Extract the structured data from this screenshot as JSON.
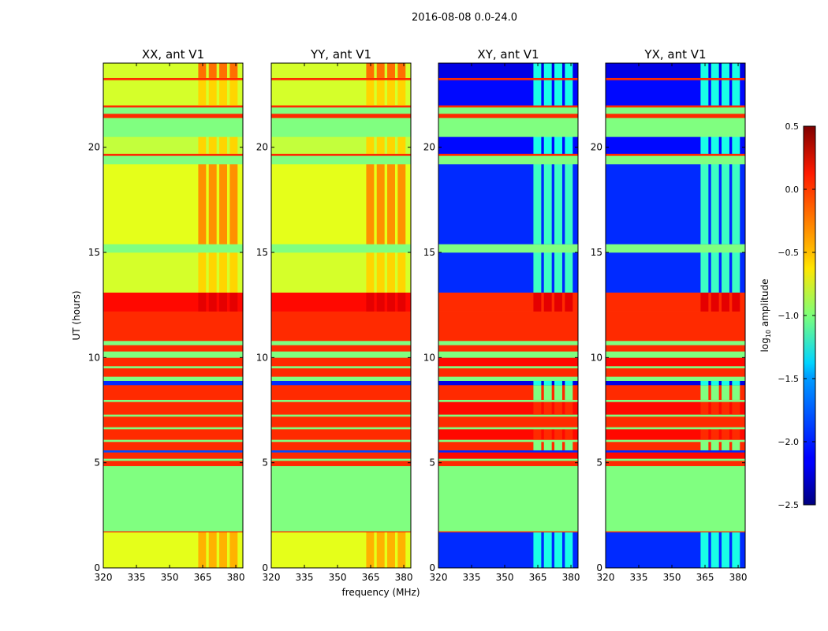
{
  "chart_data": {
    "type": "heatmap",
    "title": "2016-08-08 0.0-24.0",
    "xlabel": "frequency (MHz)",
    "ylabel": "UT (hours)",
    "xlim": [
      320,
      383.2
    ],
    "ylim": [
      0,
      24
    ],
    "x_ticks": [
      320,
      335,
      350,
      365,
      380
    ],
    "y_ticks": [
      0,
      5,
      10,
      15,
      20
    ],
    "high_band_mhz": [
      363,
      382
    ],
    "panels": [
      {
        "title": "XX, ant V1",
        "kind": "parallel"
      },
      {
        "title": "YY, ant V1",
        "kind": "parallel"
      },
      {
        "title": "XY, ant V1",
        "kind": "cross"
      },
      {
        "title": "YX, ant V1",
        "kind": "cross"
      }
    ],
    "band_columns": [
      "t0_hours",
      "t1_hours",
      "parallel_log_amp",
      "cross_log_amp",
      "parallel_log_amp_high_band",
      "cross_log_amp_high_band"
    ],
    "bands": [
      [
        0,
        1.7,
        -0.7,
        -2.0,
        -0.4,
        -1.3
      ],
      [
        1.7,
        1.75,
        0,
        0,
        0,
        0
      ],
      [
        1.75,
        4.85,
        -1,
        -1,
        -1,
        -1
      ],
      [
        4.85,
        5.1,
        0,
        0,
        0,
        0
      ],
      [
        5.1,
        5.2,
        -1,
        -1,
        -1,
        -1
      ],
      [
        5.2,
        5.5,
        0,
        0.1,
        0,
        0.1
      ],
      [
        5.5,
        5.6,
        -1.9,
        -2,
        -1.9,
        -2
      ],
      [
        5.6,
        6.0,
        0,
        0,
        0,
        -1
      ],
      [
        6.0,
        6.1,
        -1,
        -1,
        -1,
        -1
      ],
      [
        6.1,
        6.6,
        0,
        0.1,
        0,
        0
      ],
      [
        6.6,
        6.7,
        -1,
        -1,
        -1,
        -1
      ],
      [
        6.7,
        7.2,
        0,
        0,
        0,
        0
      ],
      [
        7.2,
        7.3,
        -1,
        -1,
        -1,
        -1
      ],
      [
        7.3,
        7.9,
        0,
        0.1,
        0,
        0
      ],
      [
        7.9,
        8.0,
        -1,
        -1,
        -1,
        -1
      ],
      [
        8.0,
        8.7,
        0,
        0,
        0,
        -1
      ],
      [
        8.7,
        8.9,
        -2,
        -2.2,
        -2,
        -1.3
      ],
      [
        8.9,
        9.1,
        -1,
        -1,
        -1,
        -1
      ],
      [
        9.1,
        9.5,
        0,
        0,
        0,
        0
      ],
      [
        9.5,
        9.6,
        -1,
        -1,
        -1,
        -1
      ],
      [
        9.6,
        10.0,
        0,
        0.1,
        0,
        0.1
      ],
      [
        10.0,
        10.3,
        -1,
        -1,
        -1,
        -1
      ],
      [
        10.3,
        10.6,
        0,
        0,
        0,
        0
      ],
      [
        10.6,
        10.8,
        -1,
        -1,
        -1,
        -1
      ],
      [
        10.8,
        12.2,
        0,
        0,
        0,
        0
      ],
      [
        12.2,
        13.1,
        0.1,
        0,
        0.2,
        0.2
      ],
      [
        13.1,
        15.0,
        -0.75,
        -2.0,
        -0.5,
        -1.2
      ],
      [
        15.0,
        15.4,
        -1,
        -1,
        -1,
        -1
      ],
      [
        15.4,
        19.2,
        -0.7,
        -2.0,
        -0.3,
        -1.2
      ],
      [
        19.2,
        19.6,
        -1,
        -1,
        -1,
        -1
      ],
      [
        19.6,
        19.7,
        0,
        0,
        0,
        0
      ],
      [
        19.7,
        20.5,
        -0.8,
        -2.1,
        -0.5,
        -1.3
      ],
      [
        20.5,
        21.4,
        -1,
        -1,
        -1,
        -1
      ],
      [
        21.4,
        21.6,
        0,
        0,
        0,
        0
      ],
      [
        21.6,
        21.9,
        -1,
        -1,
        -1,
        -1
      ],
      [
        21.9,
        22.0,
        0,
        0,
        0,
        0
      ],
      [
        22.0,
        23.2,
        -0.75,
        -2.1,
        -0.5,
        -1.3
      ],
      [
        23.2,
        23.3,
        0,
        0,
        0,
        0
      ],
      [
        23.3,
        24,
        -0.75,
        -2.2,
        -0.2,
        -1.3
      ]
    ],
    "colorbar": {
      "label_prefix": "log",
      "label_sub": "10",
      "label_suffix": " amplitude",
      "range": [
        -2.5,
        0.5
      ],
      "ticks": [
        0.5,
        0.0,
        -0.5,
        -1.0,
        -1.5,
        -2.0,
        -2.5
      ],
      "tick_labels": [
        "0.5",
        "0.0",
        "−0.5",
        "−1.0",
        "−1.5",
        "−2.0",
        "−2.5"
      ],
      "colormap": "jet"
    }
  }
}
